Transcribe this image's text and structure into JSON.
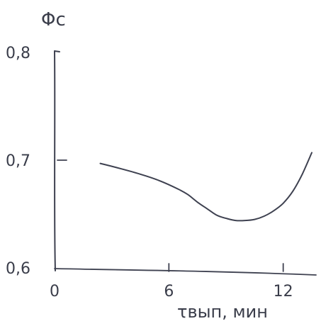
{
  "chart_data": {
    "type": "line",
    "title": "",
    "xlabel": "τвып, мин",
    "ylabel": "Φс",
    "xlim": [
      0,
      13.5
    ],
    "ylim": [
      0.6,
      0.8
    ],
    "x_ticks": [
      0,
      6,
      12
    ],
    "x_tick_labels": [
      "0",
      "6",
      "12"
    ],
    "y_ticks": [
      0.6,
      0.7,
      0.8
    ],
    "y_tick_labels": [
      "0,6",
      "0,7",
      "0,8"
    ],
    "grid": false,
    "legend": "none",
    "series": [
      {
        "x": [
          2.4,
          3.5,
          4.5,
          5.5,
          6.5,
          7.0,
          7.5,
          8.0,
          8.5,
          9.0,
          9.5,
          10.0,
          10.5,
          11.0,
          11.5,
          12.0,
          12.5,
          13.0,
          13.5
        ],
        "y": [
          0.697,
          0.692,
          0.687,
          0.681,
          0.673,
          0.668,
          0.661,
          0.655,
          0.649,
          0.646,
          0.644,
          0.644,
          0.645,
          0.648,
          0.653,
          0.66,
          0.671,
          0.687,
          0.707
        ]
      }
    ]
  },
  "colors": {
    "ink": "#3e4150"
  }
}
